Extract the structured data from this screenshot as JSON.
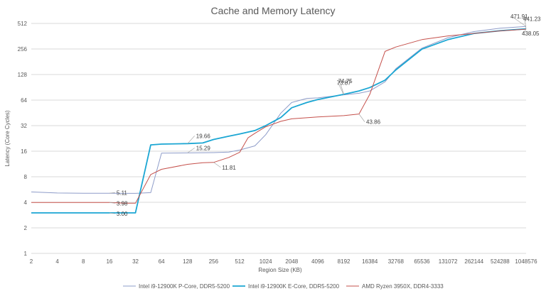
{
  "chart_data": {
    "type": "line",
    "title": "Cache and Memory Latency",
    "xlabel": "Region Size (KB)",
    "ylabel": "Latency (Core Cycles)",
    "x_scale": "log2",
    "y_scale": "log2",
    "x_ticks": [
      "2",
      "4",
      "8",
      "16",
      "32",
      "64",
      "128",
      "256",
      "512",
      "1024",
      "2048",
      "4096",
      "8192",
      "16384",
      "32768",
      "65536",
      "131072",
      "262144",
      "524288",
      "1048576"
    ],
    "y_ticks": [
      "1",
      "2",
      "4",
      "8",
      "16",
      "32",
      "64",
      "128",
      "256",
      "512"
    ],
    "xlim": [
      2,
      1048576
    ],
    "ylim": [
      1,
      512
    ],
    "grid": "horizontal",
    "legend_position": "bottom",
    "series": [
      {
        "name": "Intel i9-12900K P-Core, DDR5-5200",
        "color": "#8e9cc9",
        "width": 1,
        "points": [
          [
            2,
            5.3
          ],
          [
            4,
            5.15
          ],
          [
            8,
            5.12
          ],
          [
            16,
            5.11
          ],
          [
            24,
            5.1
          ],
          [
            32,
            5.1
          ],
          [
            48,
            5.2
          ],
          [
            64,
            15.2
          ],
          [
            128,
            15.29
          ],
          [
            256,
            15.4
          ],
          [
            384,
            15.6
          ],
          [
            512,
            16.5
          ],
          [
            768,
            18.5
          ],
          [
            1024,
            25
          ],
          [
            1536,
            45
          ],
          [
            2048,
            60
          ],
          [
            3072,
            67
          ],
          [
            4096,
            68
          ],
          [
            8192,
            73.87
          ],
          [
            12288,
            77
          ],
          [
            16384,
            82
          ],
          [
            24576,
            105
          ],
          [
            32768,
            150
          ],
          [
            65536,
            262
          ],
          [
            131072,
            348
          ],
          [
            262144,
            410
          ],
          [
            524288,
            450
          ],
          [
            1048576,
            471.91
          ]
        ]
      },
      {
        "name": "Intel i9-12900K E-Core, DDR5-5200",
        "color": "#1ba6d3",
        "width": 1.8,
        "points": [
          [
            2,
            3
          ],
          [
            4,
            3
          ],
          [
            8,
            3
          ],
          [
            16,
            3
          ],
          [
            24,
            3
          ],
          [
            32,
            3
          ],
          [
            48,
            19
          ],
          [
            64,
            19.4
          ],
          [
            128,
            19.66
          ],
          [
            192,
            20
          ],
          [
            256,
            22
          ],
          [
            384,
            24
          ],
          [
            512,
            25.5
          ],
          [
            768,
            28
          ],
          [
            1024,
            32
          ],
          [
            1536,
            40
          ],
          [
            2048,
            52
          ],
          [
            3072,
            60
          ],
          [
            4096,
            65
          ],
          [
            8192,
            74.75
          ],
          [
            12288,
            82
          ],
          [
            16384,
            90
          ],
          [
            24576,
            110
          ],
          [
            32768,
            145
          ],
          [
            65536,
            255
          ],
          [
            131072,
            330
          ],
          [
            262144,
            390
          ],
          [
            524288,
            420
          ],
          [
            1048576,
            441.23
          ]
        ]
      },
      {
        "name": "AMD Ryzen 3950X, DDR4-3333",
        "color": "#c5504b",
        "width": 1,
        "points": [
          [
            2,
            3.98
          ],
          [
            4,
            3.98
          ],
          [
            8,
            3.98
          ],
          [
            16,
            3.98
          ],
          [
            24,
            3.9
          ],
          [
            32,
            3.9
          ],
          [
            48,
            8.5
          ],
          [
            64,
            9.8
          ],
          [
            128,
            11.2
          ],
          [
            192,
            11.7
          ],
          [
            256,
            11.81
          ],
          [
            384,
            13.5
          ],
          [
            512,
            15.5
          ],
          [
            640,
            23
          ],
          [
            768,
            26
          ],
          [
            1024,
            31
          ],
          [
            1536,
            36
          ],
          [
            2048,
            38.5
          ],
          [
            4096,
            40.5
          ],
          [
            8192,
            42
          ],
          [
            12288,
            43.86
          ],
          [
            16384,
            75
          ],
          [
            24576,
            240
          ],
          [
            32768,
            270
          ],
          [
            65536,
            330
          ],
          [
            131072,
            365
          ],
          [
            262144,
            390
          ],
          [
            524288,
            418
          ],
          [
            1048576,
            438.05
          ]
        ]
      }
    ],
    "annotations": [
      {
        "text": "5.11",
        "series": 0,
        "x": 16,
        "y": 5.11
      },
      {
        "text": "3.98",
        "series": 2,
        "x": 16,
        "y": 3.98
      },
      {
        "text": "3.00",
        "series": 1,
        "x": 16,
        "y": 3
      },
      {
        "text": "19.66",
        "series": 1,
        "x": 128,
        "y": 19.66
      },
      {
        "text": "15.29",
        "series": 0,
        "x": 128,
        "y": 15.29
      },
      {
        "text": "11.81",
        "series": 2,
        "x": 256,
        "y": 11.81
      },
      {
        "text": "73.87",
        "series": 0,
        "x": 8192,
        "y": 73.87
      },
      {
        "text": "74.75",
        "series": 1,
        "x": 8192,
        "y": 74.75
      },
      {
        "text": "43.86",
        "series": 2,
        "x": 12288,
        "y": 43.86
      },
      {
        "text": "471.91",
        "series": 0,
        "x": 1048576,
        "y": 471.91
      },
      {
        "text": "441.23",
        "series": 1,
        "x": 1048576,
        "y": 441.23
      },
      {
        "text": "438.05",
        "series": 2,
        "x": 1048576,
        "y": 438.05
      }
    ]
  }
}
